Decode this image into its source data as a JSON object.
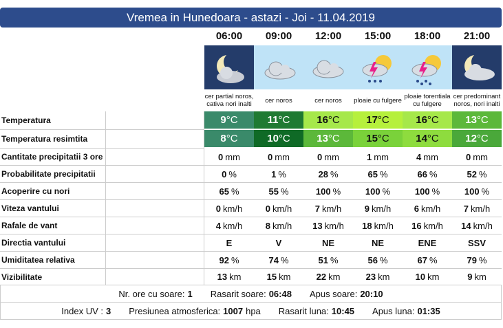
{
  "header": {
    "title": "Vremea in Hunedoara - astazi - Joi - 11.04.2019"
  },
  "hours": [
    "06:00",
    "09:00",
    "12:00",
    "15:00",
    "18:00",
    "21:00"
  ],
  "descriptions": [
    "cer partial noros, cativa nori inalti",
    "cer noros",
    "cer noros",
    "ploaie cu fulgere",
    "ploaie torentiala cu fulgere",
    "cer predominant noros, nori inalti"
  ],
  "rows": [
    {
      "label": "Temperatura",
      "values": [
        9,
        11,
        16,
        17,
        16,
        13
      ],
      "unit": "°C",
      "colors": [
        "#3a8a6a",
        "#1f7a32",
        "#a6e84a",
        "#b6f03c",
        "#a6e84a",
        "#5cb83a"
      ]
    },
    {
      "label": "Temperatura resimtita",
      "values": [
        8,
        10,
        13,
        15,
        14,
        12
      ],
      "unit": "°C",
      "colors": [
        "#3a8a6a",
        "#0f6a26",
        "#5cb83a",
        "#7ad23a",
        "#8edc3e",
        "#4aa83a"
      ]
    },
    {
      "label": "Cantitate precipitatii 3 ore",
      "values": [
        0,
        0,
        0,
        1,
        4,
        0
      ],
      "unit": "mm"
    },
    {
      "label": "Probabilitate precipitatii",
      "values": [
        0,
        1,
        28,
        65,
        66,
        52
      ],
      "unit": "%"
    },
    {
      "label": "Acoperire cu nori",
      "values": [
        65,
        55,
        100,
        100,
        100,
        100
      ],
      "unit": "%"
    },
    {
      "label": "Viteza vantului",
      "values": [
        0,
        0,
        7,
        9,
        6,
        7
      ],
      "unit": "km/h"
    },
    {
      "label": "Rafale de vant",
      "values": [
        4,
        8,
        13,
        18,
        16,
        14
      ],
      "unit": "km/h"
    },
    {
      "label": "Directia vantului",
      "values": [
        "E",
        "V",
        "NE",
        "NE",
        "ENE",
        "SSV"
      ]
    },
    {
      "label": "Umiditatea relativa",
      "values": [
        92,
        74,
        51,
        56,
        67,
        79
      ],
      "unit": "%"
    },
    {
      "label": "Vizibilitate",
      "values": [
        13,
        15,
        22,
        23,
        10,
        9
      ],
      "unit": "km"
    }
  ],
  "footer": [
    [
      {
        "label": "Nr. ore cu soare:",
        "value": 1
      },
      {
        "label": "Rasarit soare:",
        "value": "06:48"
      },
      {
        "label": "Apus soare:",
        "value": "20:10"
      }
    ],
    [
      {
        "label": "Index UV :",
        "value": 3
      },
      {
        "label": "Presiunea atmosferica:",
        "value": 1007,
        "unit": "hpa"
      },
      {
        "label": "Rasarit luna:",
        "value": "10:45"
      },
      {
        "label": "Apus luna:",
        "value": "01:35"
      }
    ]
  ]
}
